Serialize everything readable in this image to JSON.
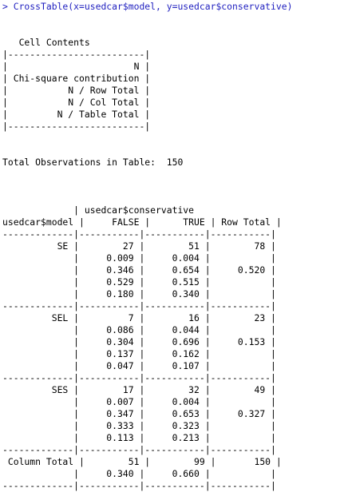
{
  "console": {
    "command": "> CrossTable(x=usedcar$model, y=usedcar$conservative)",
    "output_lines": [
      "",
      "",
      "   Cell Contents",
      "|-------------------------|",
      "|                       N |",
      "| Chi-square contribution |",
      "|           N / Row Total |",
      "|           N / Col Total |",
      "|         N / Table Total |",
      "|-------------------------|",
      "",
      "",
      "Total Observations in Table:  150",
      "",
      "",
      "",
      "             | usedcar$conservative",
      "usedcar$model |     FALSE |      TRUE | Row Total |",
      "-------------|-----------|-----------|-----------|",
      "          SE |        27 |        51 |        78 |",
      "             |     0.009 |     0.004 |           |",
      "             |     0.346 |     0.654 |     0.520 |",
      "             |     0.529 |     0.515 |           |",
      "             |     0.180 |     0.340 |           |",
      "-------------|-----------|-----------|-----------|",
      "         SEL |         7 |        16 |        23 |",
      "             |     0.086 |     0.044 |           |",
      "             |     0.304 |     0.696 |     0.153 |",
      "             |     0.137 |     0.162 |           |",
      "             |     0.047 |     0.107 |           |",
      "-------------|-----------|-----------|-----------|",
      "         SES |        17 |        32 |        49 |",
      "             |     0.007 |     0.004 |           |",
      "             |     0.347 |     0.653 |     0.327 |",
      "             |     0.333 |     0.323 |           |",
      "             |     0.113 |     0.213 |           |",
      "-------------|-----------|-----------|-----------|",
      " Column Total |        51 |        99 |       150 |",
      "             |     0.340 |     0.660 |           |",
      "-------------|-----------|-----------|-----------|"
    ]
  }
}
